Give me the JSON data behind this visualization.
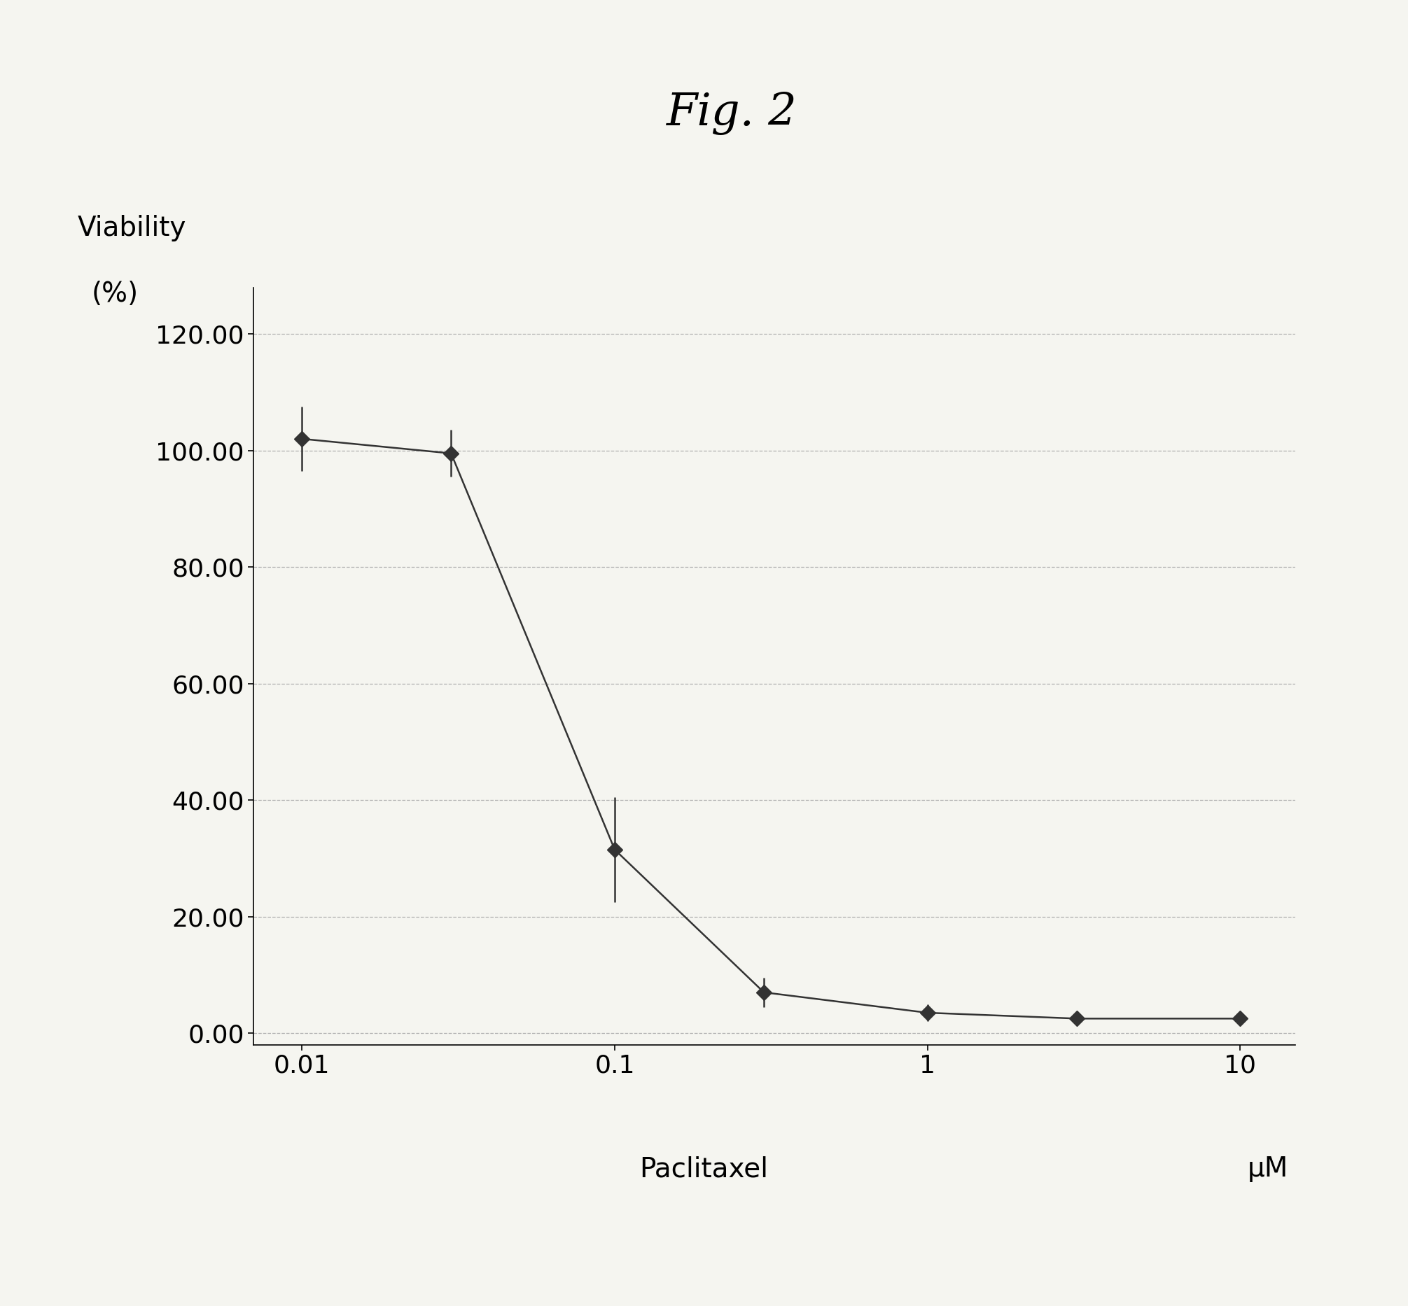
{
  "title": "Fig. 2",
  "xlabel": "Paclitaxel",
  "xlabel_unit": "μM",
  "ylabel_line1": "Viability",
  "ylabel_line2": "(%)",
  "x_values": [
    0.01,
    0.03,
    0.1,
    0.3,
    1.0,
    3.0,
    10.0
  ],
  "y_values": [
    102.0,
    99.5,
    31.5,
    7.0,
    3.5,
    2.5,
    2.5
  ],
  "y_errors": [
    5.5,
    4.0,
    9.0,
    2.5,
    1.5,
    0.8,
    0.8
  ],
  "xlim": [
    0.007,
    15.0
  ],
  "ylim": [
    -2,
    128
  ],
  "yticks": [
    0.0,
    20.0,
    40.0,
    60.0,
    80.0,
    100.0,
    120.0
  ],
  "xticks": [
    0.01,
    0.1,
    1.0,
    10.0
  ],
  "xtick_labels": [
    "0.01",
    "0.1",
    "1",
    "10"
  ],
  "grid_color": "#b0b0b0",
  "line_color": "#333333",
  "marker_color": "#333333",
  "background_color": "#f5f5f0",
  "title_fontsize": 46,
  "label_fontsize": 28,
  "tick_fontsize": 26,
  "unit_fontsize": 28
}
